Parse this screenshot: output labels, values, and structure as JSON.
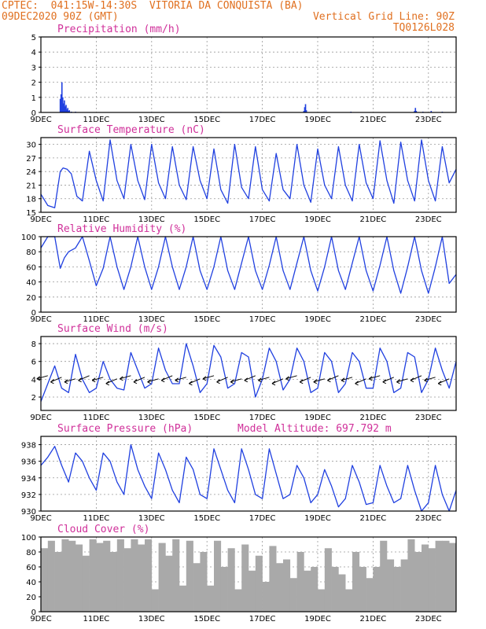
{
  "header": {
    "line1": "CPTEC:  041:15W-14:30S  VITORIA DA CONQUISTA (BA)",
    "line2": "09DEC2020 90Z (GMT)",
    "grid_note": "Vertical Grid Line: 90Z",
    "model_id": "TQ0126L028"
  },
  "colors": {
    "header": "#e07020",
    "title": "#d0309a",
    "series": "#2040e0",
    "cloud": "#a9a9a9"
  },
  "chart_data": [
    {
      "id": "precip",
      "type": "bar",
      "title": "Precipitation (mm/h)",
      "ylim": [
        0,
        5
      ],
      "yticks": [
        0,
        1,
        2,
        3,
        4,
        5
      ],
      "xlim": [
        0,
        15
      ],
      "xticks": [
        0,
        2,
        4,
        6,
        8,
        10,
        12,
        14
      ],
      "xticklabels": [
        "9DEC",
        "11DEC",
        "13DEC",
        "15DEC",
        "17DEC",
        "19DEC",
        "21DEC",
        "23DEC"
      ],
      "x": [
        0.7,
        0.73,
        0.76,
        0.79,
        0.82,
        0.85,
        0.88,
        0.91,
        0.94,
        0.97,
        1.0,
        1.03,
        1.1,
        1.25,
        4.0,
        6.5,
        9.5,
        9.53,
        9.56,
        9.59,
        11.2,
        13.5,
        13.53,
        13.56,
        13.8,
        14.1,
        14.5
      ],
      "values": [
        0.9,
        1.2,
        2.0,
        1.0,
        0.6,
        0.8,
        0.4,
        0.5,
        0.2,
        0.3,
        0.1,
        0.15,
        0.05,
        0.05,
        0.03,
        0.03,
        0.1,
        0.35,
        0.55,
        0.15,
        0.05,
        0.1,
        0.3,
        0.1,
        0.05,
        0.1,
        0.05
      ]
    },
    {
      "id": "temp",
      "type": "line",
      "title": "Surface Temperature (nC)",
      "ylim": [
        15,
        31.5
      ],
      "yticks": [
        15,
        18,
        21,
        24,
        27,
        30
      ],
      "xlim": [
        0,
        15
      ],
      "xticks": [
        0,
        2,
        4,
        6,
        8,
        10,
        12,
        14
      ],
      "xticklabels": [
        "9DEC",
        "11DEC",
        "13DEC",
        "15DEC",
        "17DEC",
        "19DEC",
        "21DEC",
        "23DEC"
      ],
      "x": [
        0.0,
        0.25,
        0.5,
        0.7,
        0.8,
        0.95,
        1.1,
        1.3,
        1.5,
        1.75,
        2.0,
        2.25,
        2.5,
        2.75,
        3.0,
        3.25,
        3.5,
        3.75,
        4.0,
        4.25,
        4.5,
        4.75,
        5.0,
        5.25,
        5.5,
        5.75,
        6.0,
        6.25,
        6.5,
        6.75,
        7.0,
        7.25,
        7.5,
        7.75,
        8.0,
        8.25,
        8.5,
        8.75,
        9.0,
        9.25,
        9.5,
        9.75,
        10.0,
        10.25,
        10.5,
        10.75,
        11.0,
        11.25,
        11.5,
        11.75,
        12.0,
        12.25,
        12.5,
        12.75,
        13.0,
        13.25,
        13.5,
        13.75,
        14.0,
        14.25,
        14.5,
        14.75,
        15.0
      ],
      "values": [
        19.0,
        16.5,
        16.0,
        24.0,
        24.8,
        24.5,
        23.5,
        18.5,
        17.5,
        28.5,
        22.0,
        17.5,
        31.0,
        22.0,
        18.0,
        30.0,
        22.0,
        17.8,
        30.0,
        21.5,
        18.0,
        29.5,
        21.0,
        17.8,
        29.5,
        22.0,
        18.0,
        29.0,
        20.0,
        17.0,
        30.0,
        20.5,
        18.0,
        29.5,
        20.0,
        17.5,
        28.0,
        20.0,
        18.0,
        30.0,
        21.0,
        17.2,
        29.0,
        21.0,
        18.0,
        29.5,
        21.0,
        17.5,
        30.0,
        21.5,
        18.0,
        30.8,
        22.0,
        17.0,
        30.5,
        22.0,
        17.5,
        31.0,
        22.0,
        17.5,
        29.5,
        21.5,
        24.5
      ]
    },
    {
      "id": "rh",
      "type": "line",
      "title": "Relative Humidity (%)",
      "ylim": [
        0,
        100
      ],
      "yticks": [
        0,
        20,
        40,
        60,
        80,
        100
      ],
      "xlim": [
        0,
        15
      ],
      "xticks": [
        0,
        2,
        4,
        6,
        8,
        10,
        12,
        14
      ],
      "xticklabels": [
        "9DEC",
        "11DEC",
        "13DEC",
        "15DEC",
        "17DEC",
        "19DEC",
        "21DEC",
        "23DEC"
      ],
      "x": [
        0.0,
        0.25,
        0.5,
        0.7,
        0.85,
        1.0,
        1.25,
        1.5,
        1.75,
        2.0,
        2.25,
        2.5,
        2.75,
        3.0,
        3.25,
        3.5,
        3.75,
        4.0,
        4.25,
        4.5,
        4.75,
        5.0,
        5.25,
        5.5,
        5.75,
        6.0,
        6.25,
        6.5,
        6.75,
        7.0,
        7.25,
        7.5,
        7.75,
        8.0,
        8.25,
        8.5,
        8.75,
        9.0,
        9.25,
        9.5,
        9.75,
        10.0,
        10.25,
        10.5,
        10.75,
        11.0,
        11.25,
        11.5,
        11.75,
        12.0,
        12.25,
        12.5,
        12.75,
        13.0,
        13.25,
        13.5,
        13.75,
        14.0,
        14.25,
        14.5,
        14.75,
        15.0
      ],
      "values": [
        85,
        100,
        100,
        58,
        72,
        80,
        85,
        100,
        68,
        35,
        58,
        100,
        60,
        30,
        60,
        100,
        60,
        30,
        60,
        100,
        60,
        30,
        60,
        100,
        55,
        30,
        60,
        100,
        55,
        30,
        65,
        100,
        55,
        30,
        62,
        100,
        55,
        30,
        65,
        100,
        55,
        28,
        60,
        100,
        55,
        30,
        65,
        100,
        55,
        28,
        62,
        100,
        55,
        25,
        60,
        100,
        55,
        25,
        60,
        100,
        38,
        50
      ]
    },
    {
      "id": "wind",
      "type": "line",
      "title": "Surface Wind (m/s)",
      "ylim": [
        0.5,
        8.8
      ],
      "yticks": [
        2,
        4,
        6,
        8
      ],
      "xlim": [
        0,
        15
      ],
      "xticks": [
        0,
        2,
        4,
        6,
        8,
        10,
        12,
        14
      ],
      "xticklabels": [
        "9DEC",
        "11DEC",
        "13DEC",
        "15DEC",
        "17DEC",
        "19DEC",
        "21DEC",
        "23DEC"
      ],
      "x": [
        0.0,
        0.25,
        0.5,
        0.75,
        1.0,
        1.25,
        1.5,
        1.75,
        2.0,
        2.25,
        2.5,
        2.75,
        3.0,
        3.25,
        3.5,
        3.75,
        4.0,
        4.25,
        4.5,
        4.75,
        5.0,
        5.25,
        5.5,
        5.75,
        6.0,
        6.25,
        6.5,
        6.75,
        7.0,
        7.25,
        7.5,
        7.75,
        8.0,
        8.25,
        8.5,
        8.75,
        9.0,
        9.25,
        9.5,
        9.75,
        10.0,
        10.25,
        10.5,
        10.75,
        11.0,
        11.25,
        11.5,
        11.75,
        12.0,
        12.25,
        12.5,
        12.75,
        13.0,
        13.25,
        13.5,
        13.75,
        14.0,
        14.25,
        14.5,
        14.75,
        15.0
      ],
      "values": [
        1.5,
        3.5,
        5.5,
        3.0,
        2.5,
        6.8,
        4.0,
        2.5,
        3.0,
        6.0,
        4.0,
        3.0,
        2.8,
        7.0,
        5.0,
        3.0,
        3.5,
        7.5,
        5.0,
        3.5,
        3.5,
        8.0,
        5.5,
        2.5,
        3.5,
        7.8,
        6.5,
        3.0,
        3.5,
        7.0,
        6.5,
        2.0,
        4.0,
        7.5,
        6.0,
        2.8,
        4.0,
        7.5,
        6.0,
        2.5,
        3.0,
        7.0,
        6.0,
        2.5,
        3.5,
        7.0,
        6.0,
        3.0,
        3.0,
        7.5,
        6.0,
        2.5,
        3.0,
        7.0,
        6.5,
        2.5,
        4.0,
        7.5,
        5.0,
        3.0,
        6.0
      ],
      "barb_direction": "from east-northeast (arrows point west-southwest)"
    },
    {
      "id": "pres",
      "type": "line",
      "title": "Surface Pressure (hPa)",
      "subtitle": "Model Altitude: 697.792 m",
      "ylim": [
        930,
        939
      ],
      "yticks": [
        930,
        932,
        934,
        936,
        938
      ],
      "xlim": [
        0,
        15
      ],
      "xticks": [
        0,
        2,
        4,
        6,
        8,
        10,
        12,
        14
      ],
      "xticklabels": [
        "9DEC",
        "11DEC",
        "13DEC",
        "15DEC",
        "17DEC",
        "19DEC",
        "21DEC",
        "23DEC"
      ],
      "x": [
        0.0,
        0.25,
        0.5,
        0.75,
        1.0,
        1.25,
        1.5,
        1.75,
        2.0,
        2.25,
        2.5,
        2.75,
        3.0,
        3.25,
        3.5,
        3.75,
        4.0,
        4.25,
        4.5,
        4.75,
        5.0,
        5.25,
        5.5,
        5.75,
        6.0,
        6.25,
        6.5,
        6.75,
        7.0,
        7.25,
        7.5,
        7.75,
        8.0,
        8.25,
        8.5,
        8.75,
        9.0,
        9.25,
        9.5,
        9.75,
        10.0,
        10.25,
        10.5,
        10.75,
        11.0,
        11.25,
        11.5,
        11.75,
        12.0,
        12.25,
        12.5,
        12.75,
        13.0,
        13.25,
        13.5,
        13.75,
        14.0,
        14.25,
        14.5,
        14.75,
        15.0
      ],
      "values": [
        935.5,
        936.5,
        937.8,
        935.5,
        933.5,
        937.0,
        936.0,
        934.0,
        932.5,
        937.0,
        936.0,
        933.5,
        932.0,
        938.0,
        935.0,
        933.0,
        931.5,
        937.0,
        935.0,
        932.5,
        931.0,
        936.5,
        935.0,
        932.0,
        931.5,
        937.5,
        935.0,
        932.5,
        931.0,
        937.5,
        935.0,
        932.0,
        931.5,
        937.5,
        934.5,
        931.5,
        932.0,
        935.5,
        934.0,
        931.0,
        932.0,
        935.0,
        933.0,
        930.5,
        931.5,
        935.5,
        933.5,
        930.8,
        931.0,
        935.5,
        933.0,
        931.0,
        931.5,
        935.5,
        932.5,
        930.0,
        931.0,
        935.5,
        932.0,
        930.0,
        932.5
      ]
    },
    {
      "id": "cloud",
      "type": "bar",
      "title": "Cloud Cover (%)",
      "ylim": [
        0,
        100
      ],
      "yticks": [
        0,
        20,
        40,
        60,
        80,
        100
      ],
      "xlim": [
        0,
        15
      ],
      "xticks": [
        0,
        2,
        4,
        6,
        8,
        10,
        12,
        14
      ],
      "xticklabels": [
        "9DEC",
        "11DEC",
        "13DEC",
        "15DEC",
        "17DEC",
        "19DEC",
        "21DEC",
        "23DEC"
      ],
      "x": [
        0.0,
        0.25,
        0.5,
        0.75,
        1.0,
        1.25,
        1.5,
        1.75,
        2.0,
        2.25,
        2.5,
        2.75,
        3.0,
        3.25,
        3.5,
        3.75,
        4.0,
        4.25,
        4.5,
        4.75,
        5.0,
        5.25,
        5.5,
        5.75,
        6.0,
        6.25,
        6.5,
        6.75,
        7.0,
        7.25,
        7.5,
        7.75,
        8.0,
        8.25,
        8.5,
        8.75,
        9.0,
        9.25,
        9.5,
        9.75,
        10.0,
        10.25,
        10.5,
        10.75,
        11.0,
        11.25,
        11.5,
        11.75,
        12.0,
        12.25,
        12.5,
        12.75,
        13.0,
        13.25,
        13.5,
        13.75,
        14.0,
        14.25,
        14.5,
        14.75
      ],
      "values": [
        85,
        95,
        80,
        97,
        95,
        90,
        75,
        97,
        92,
        95,
        80,
        97,
        85,
        97,
        90,
        97,
        30,
        92,
        75,
        97,
        35,
        95,
        65,
        80,
        35,
        95,
        60,
        85,
        30,
        90,
        55,
        75,
        40,
        88,
        65,
        70,
        45,
        80,
        55,
        60,
        30,
        85,
        60,
        50,
        30,
        80,
        60,
        45,
        60,
        95,
        70,
        60,
        70,
        97,
        80,
        90,
        85,
        95,
        95,
        92
      ]
    }
  ]
}
